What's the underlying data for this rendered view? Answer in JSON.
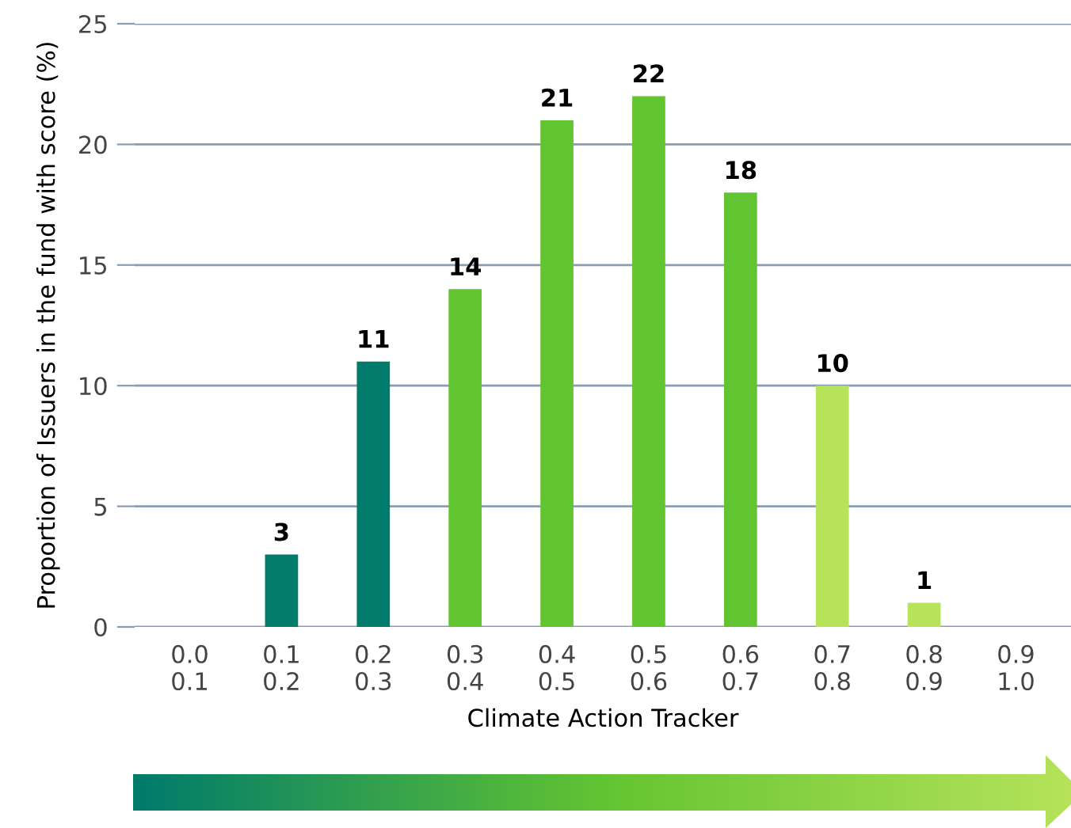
{
  "chart_data": {
    "type": "bar",
    "xlabel": "Climate Action Tracker",
    "ylabel": "Proportion of Issuers in the fund with score (%)",
    "categories": [
      "0.0\n0.1",
      "0.1\n0.2",
      "0.2\n0.3",
      "0.3\n0.4",
      "0.4\n0.5",
      "0.5\n0.6",
      "0.6\n0.7",
      "0.7\n0.8",
      "0.8\n0.9",
      "0.9\n1.0"
    ],
    "values": [
      0,
      3,
      11,
      14,
      21,
      22,
      18,
      10,
      1,
      0
    ],
    "value_labels": [
      null,
      "3",
      "11",
      "14",
      "21",
      "22",
      "18",
      "10",
      "1",
      null
    ],
    "colors": [
      "#007b6c",
      "#007b6c",
      "#007b6c",
      "#63c432",
      "#63c432",
      "#63c432",
      "#63c432",
      "#b6e35a",
      "#b6e35a",
      "#b6e35a"
    ],
    "ylim": [
      0,
      25
    ],
    "yticks": [
      0,
      5,
      10,
      15,
      20,
      25
    ],
    "grid": "y",
    "legend": false
  }
}
